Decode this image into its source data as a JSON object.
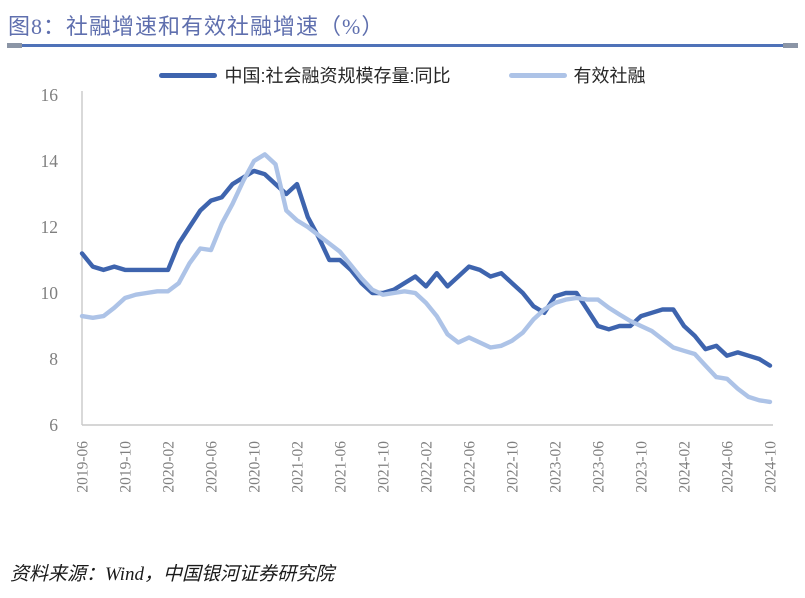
{
  "header": {
    "title": "图8：社融增速和有效社融增速（%）"
  },
  "footer": {
    "source_text": "资料来源：Wind，中国银河证券研究院"
  },
  "colors": {
    "title": "#5F6FAE",
    "rule": "#4F72B8",
    "rule_caps": "#8B95A6",
    "series_dark": "#3E64AE",
    "series_light": "#ADC3E7",
    "axis_text": "#7F7F7F",
    "axis_line": "#C9C9C9"
  },
  "chart_data": {
    "type": "line",
    "title": "图8：社融增速和有效社融增速（%）",
    "ylabel": "",
    "xlabel": "",
    "ylim": [
      6,
      16
    ],
    "yticks": [
      6,
      8,
      10,
      12,
      14,
      16
    ],
    "x_tick_every": 4,
    "grid": false,
    "legend_position": "top-center",
    "x": [
      "2019-06",
      "2019-07",
      "2019-08",
      "2019-09",
      "2019-10",
      "2019-11",
      "2019-12",
      "2020-01",
      "2020-02",
      "2020-03",
      "2020-04",
      "2020-05",
      "2020-06",
      "2020-07",
      "2020-08",
      "2020-09",
      "2020-10",
      "2020-11",
      "2020-12",
      "2021-01",
      "2021-02",
      "2021-03",
      "2021-04",
      "2021-05",
      "2021-06",
      "2021-07",
      "2021-08",
      "2021-09",
      "2021-10",
      "2021-11",
      "2021-12",
      "2022-01",
      "2022-02",
      "2022-03",
      "2022-04",
      "2022-05",
      "2022-06",
      "2022-07",
      "2022-08",
      "2022-09",
      "2022-10",
      "2022-11",
      "2022-12",
      "2023-01",
      "2023-02",
      "2023-03",
      "2023-04",
      "2023-05",
      "2023-06",
      "2023-07",
      "2023-08",
      "2023-09",
      "2023-10",
      "2023-11",
      "2023-12",
      "2024-01",
      "2024-02",
      "2024-03",
      "2024-04",
      "2024-05",
      "2024-06",
      "2024-07",
      "2024-08",
      "2024-09",
      "2024-10"
    ],
    "series": [
      {
        "name": "中国:社会融资规模存量:同比",
        "color": "#3E64AE",
        "values": [
          11.2,
          10.8,
          10.7,
          10.8,
          10.7,
          10.7,
          10.7,
          10.7,
          10.7,
          11.5,
          12.0,
          12.5,
          12.8,
          12.9,
          13.3,
          13.5,
          13.7,
          13.6,
          13.3,
          13.0,
          13.3,
          12.3,
          11.7,
          11.0,
          11.0,
          10.7,
          10.3,
          10.0,
          10.0,
          10.1,
          10.3,
          10.5,
          10.2,
          10.6,
          10.2,
          10.5,
          10.8,
          10.7,
          10.5,
          10.6,
          10.3,
          10.0,
          9.6,
          9.4,
          9.9,
          10.0,
          10.0,
          9.5,
          9.0,
          8.9,
          9.0,
          9.0,
          9.3,
          9.4,
          9.5,
          9.5,
          9.0,
          8.7,
          8.3,
          8.4,
          8.1,
          8.2,
          8.1,
          8.0,
          7.8
        ]
      },
      {
        "name": "有效社融",
        "color": "#ADC3E7",
        "values": [
          9.3,
          9.25,
          9.3,
          9.55,
          9.85,
          9.95,
          10.0,
          10.05,
          10.05,
          10.3,
          10.9,
          11.35,
          11.3,
          12.1,
          12.7,
          13.4,
          14.0,
          14.2,
          13.9,
          12.5,
          12.2,
          12.0,
          11.75,
          11.5,
          11.25,
          10.85,
          10.45,
          10.1,
          9.95,
          10.0,
          10.05,
          10.0,
          9.7,
          9.3,
          8.75,
          8.5,
          8.65,
          8.5,
          8.35,
          8.4,
          8.55,
          8.8,
          9.2,
          9.5,
          9.7,
          9.8,
          9.85,
          9.8,
          9.8,
          9.55,
          9.35,
          9.15,
          9.0,
          8.85,
          8.6,
          8.35,
          8.25,
          8.15,
          7.8,
          7.45,
          7.4,
          7.1,
          6.85,
          6.75,
          6.7
        ]
      }
    ]
  }
}
